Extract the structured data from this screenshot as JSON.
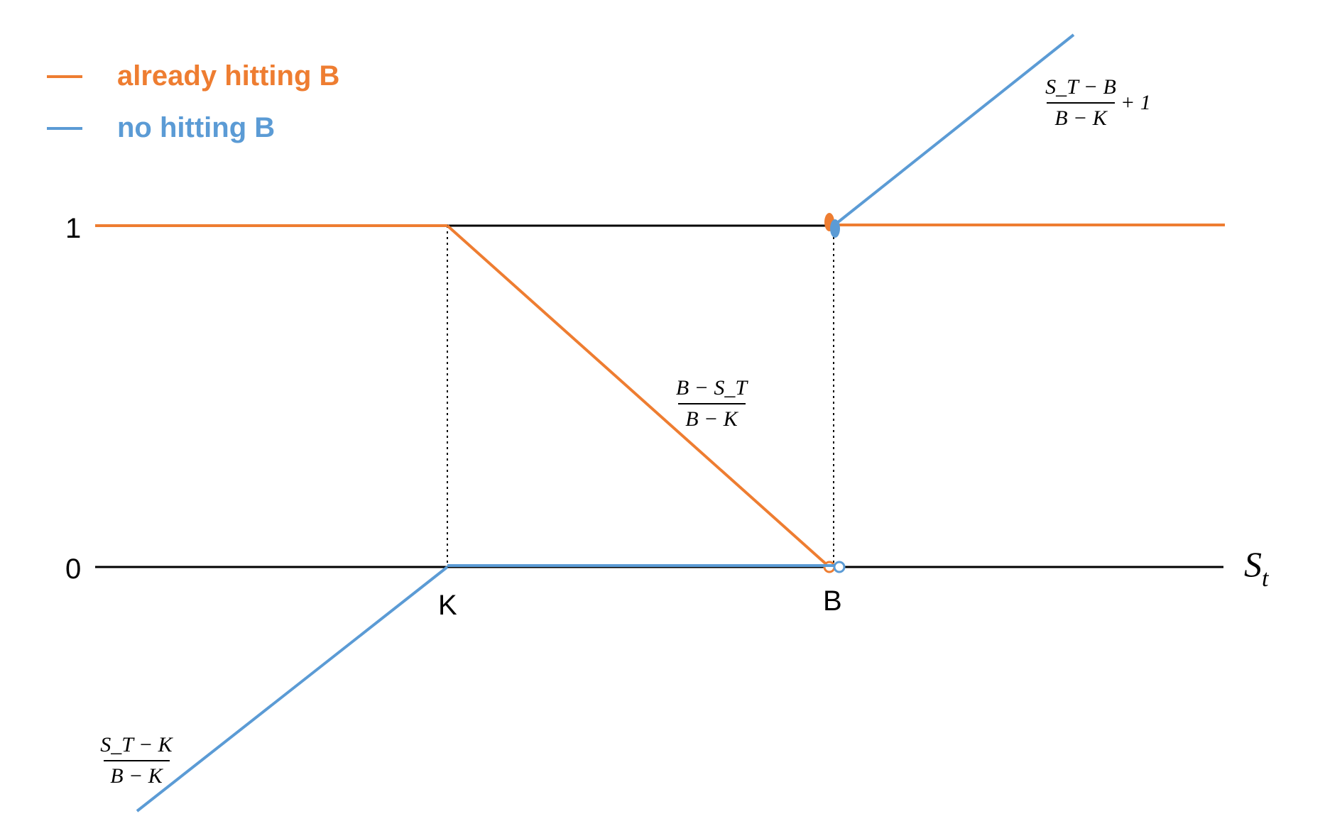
{
  "colors": {
    "already_hitting": "#EE7D31",
    "no_hitting": "#5B9BD5",
    "axis": "#000000"
  },
  "legend": {
    "items": [
      {
        "label": "already hitting B",
        "color": "#EE7D31"
      },
      {
        "label": "no hitting B",
        "color": "#5B9BD5"
      }
    ]
  },
  "axes": {
    "y_ticks": [
      "1",
      "0"
    ],
    "x_ticks": [
      "K",
      "B"
    ],
    "x_label": {
      "main": "S",
      "sub": "t"
    }
  },
  "formulas": {
    "upper_right": {
      "num": "S_T − B",
      "den": "B − K",
      "suffix": "+ 1"
    },
    "middle": {
      "num": "B − S_T",
      "den": "B − K"
    },
    "lower_left": {
      "num": "S_T − K",
      "den": "B − K"
    }
  }
}
